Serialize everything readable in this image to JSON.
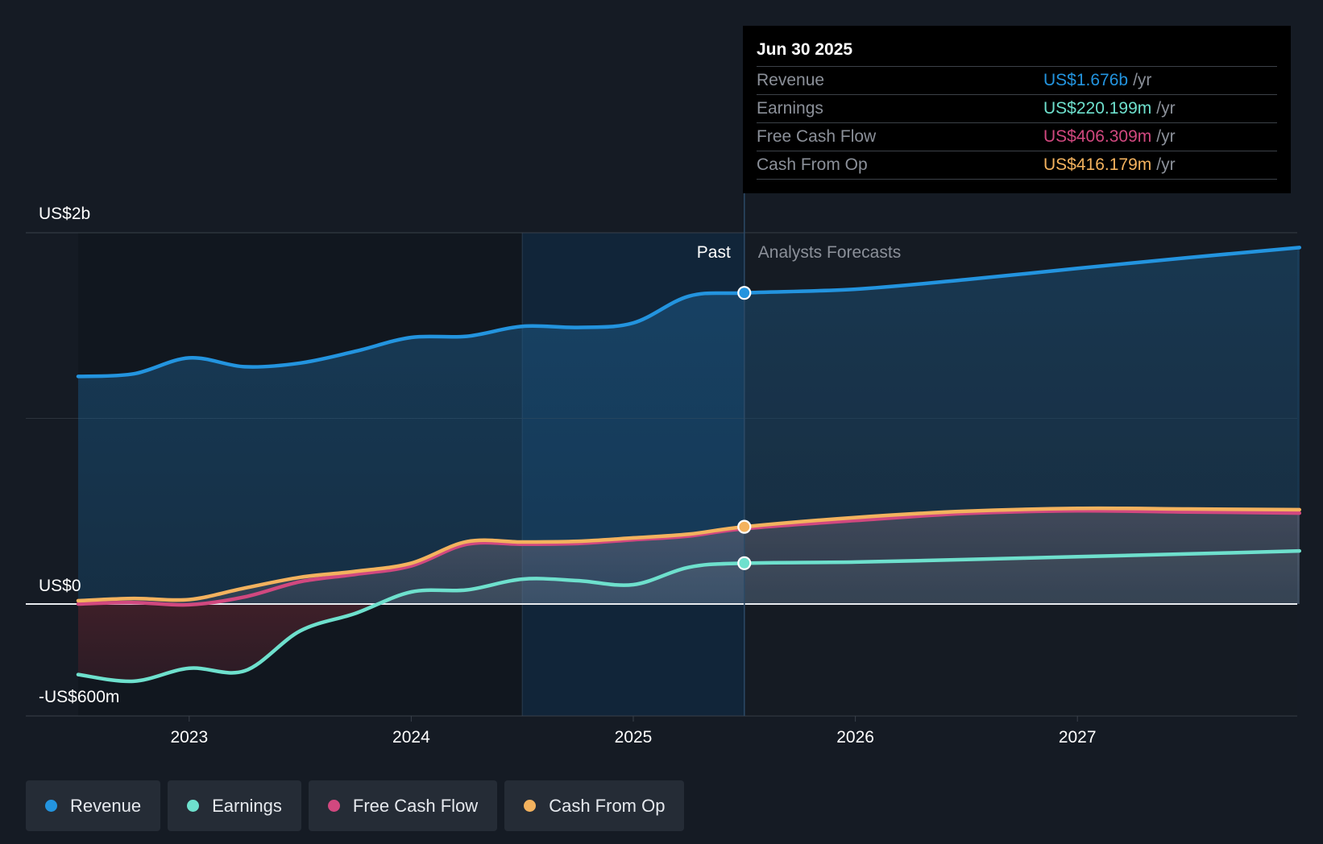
{
  "chart_data": {
    "type": "area",
    "y_axis": {
      "unit": "US$m",
      "min": -600,
      "max": 2000,
      "ticks": [
        {
          "value": 2000,
          "label": "US$2b"
        },
        {
          "value": 0,
          "label": "US$0"
        },
        {
          "value": -600,
          "label": "-US$600m"
        }
      ]
    },
    "x_axis": {
      "ticks": [
        {
          "value": 2023.0,
          "label": "2023"
        },
        {
          "value": 2024.0,
          "label": "2024"
        },
        {
          "value": 2025.0,
          "label": "2025"
        },
        {
          "value": 2026.0,
          "label": "2026"
        },
        {
          "value": 2027.0,
          "label": "2027"
        }
      ]
    },
    "x_range": [
      2022.27,
      2028.0
    ],
    "past_label": "Past",
    "forecast_label": "Analysts Forecasts",
    "current_x": 2025.5,
    "highlight_start": 2024.5,
    "series": [
      {
        "name": "Revenue",
        "color": "#2394df",
        "points": [
          [
            2022.5,
            1226
          ],
          [
            2022.75,
            1240
          ],
          [
            2023.0,
            1326
          ],
          [
            2023.25,
            1278
          ],
          [
            2023.5,
            1298
          ],
          [
            2023.75,
            1362
          ],
          [
            2024.0,
            1436
          ],
          [
            2024.25,
            1442
          ],
          [
            2024.5,
            1496
          ],
          [
            2024.75,
            1490
          ],
          [
            2025.0,
            1514
          ],
          [
            2025.25,
            1658
          ],
          [
            2025.5,
            1676
          ],
          [
            2026.0,
            1696
          ],
          [
            2026.5,
            1748
          ],
          [
            2027.0,
            1808
          ],
          [
            2027.5,
            1866
          ],
          [
            2028.0,
            1920
          ]
        ]
      },
      {
        "name": "Earnings",
        "color": "#6ee0cd",
        "points": [
          [
            2022.5,
            -380
          ],
          [
            2022.75,
            -416
          ],
          [
            2023.0,
            -346
          ],
          [
            2023.25,
            -360
          ],
          [
            2023.5,
            -145
          ],
          [
            2023.75,
            -50
          ],
          [
            2024.0,
            65
          ],
          [
            2024.25,
            76
          ],
          [
            2024.5,
            134
          ],
          [
            2024.75,
            126
          ],
          [
            2025.0,
            104
          ],
          [
            2025.25,
            198
          ],
          [
            2025.5,
            220
          ],
          [
            2026.0,
            226
          ],
          [
            2026.5,
            240
          ],
          [
            2027.0,
            255
          ],
          [
            2027.5,
            270
          ],
          [
            2028.0,
            286
          ]
        ]
      },
      {
        "name": "Free Cash Flow",
        "color": "#d1487f",
        "points": [
          [
            2022.5,
            0
          ],
          [
            2022.75,
            8
          ],
          [
            2023.0,
            -4
          ],
          [
            2023.25,
            38
          ],
          [
            2023.5,
            120
          ],
          [
            2023.75,
            160
          ],
          [
            2024.0,
            205
          ],
          [
            2024.25,
            322
          ],
          [
            2024.5,
            322
          ],
          [
            2024.75,
            326
          ],
          [
            2025.0,
            346
          ],
          [
            2025.25,
            366
          ],
          [
            2025.5,
            406
          ],
          [
            2026.0,
            450
          ],
          [
            2026.5,
            488
          ],
          [
            2027.0,
            502
          ],
          [
            2027.5,
            496
          ],
          [
            2028.0,
            490
          ]
        ]
      },
      {
        "name": "Cash From Op",
        "color": "#f3b25e",
        "points": [
          [
            2022.5,
            18
          ],
          [
            2022.75,
            30
          ],
          [
            2023.0,
            24
          ],
          [
            2023.25,
            86
          ],
          [
            2023.5,
            144
          ],
          [
            2023.75,
            176
          ],
          [
            2024.0,
            220
          ],
          [
            2024.25,
            336
          ],
          [
            2024.5,
            334
          ],
          [
            2024.75,
            338
          ],
          [
            2025.0,
            356
          ],
          [
            2025.25,
            376
          ],
          [
            2025.5,
            416
          ],
          [
            2026.0,
            466
          ],
          [
            2026.5,
            500
          ],
          [
            2027.0,
            515
          ],
          [
            2027.5,
            512
          ],
          [
            2028.0,
            508
          ]
        ]
      }
    ]
  },
  "tooltip": {
    "date": "Jun 30 2025",
    "rows": [
      {
        "label": "Revenue",
        "value": "US$1.676b",
        "unit": "/yr",
        "color": "#2394df"
      },
      {
        "label": "Earnings",
        "value": "US$220.199m",
        "unit": "/yr",
        "color": "#6ee0cd"
      },
      {
        "label": "Free Cash Flow",
        "value": "US$406.309m",
        "unit": "/yr",
        "color": "#d1487f"
      },
      {
        "label": "Cash From Op",
        "value": "US$416.179m",
        "unit": "/yr",
        "color": "#f3b25e"
      }
    ]
  },
  "legend": [
    {
      "label": "Revenue",
      "color": "#2394df"
    },
    {
      "label": "Earnings",
      "color": "#6ee0cd"
    },
    {
      "label": "Free Cash Flow",
      "color": "#d1487f"
    },
    {
      "label": "Cash From Op",
      "color": "#f3b25e"
    }
  ]
}
